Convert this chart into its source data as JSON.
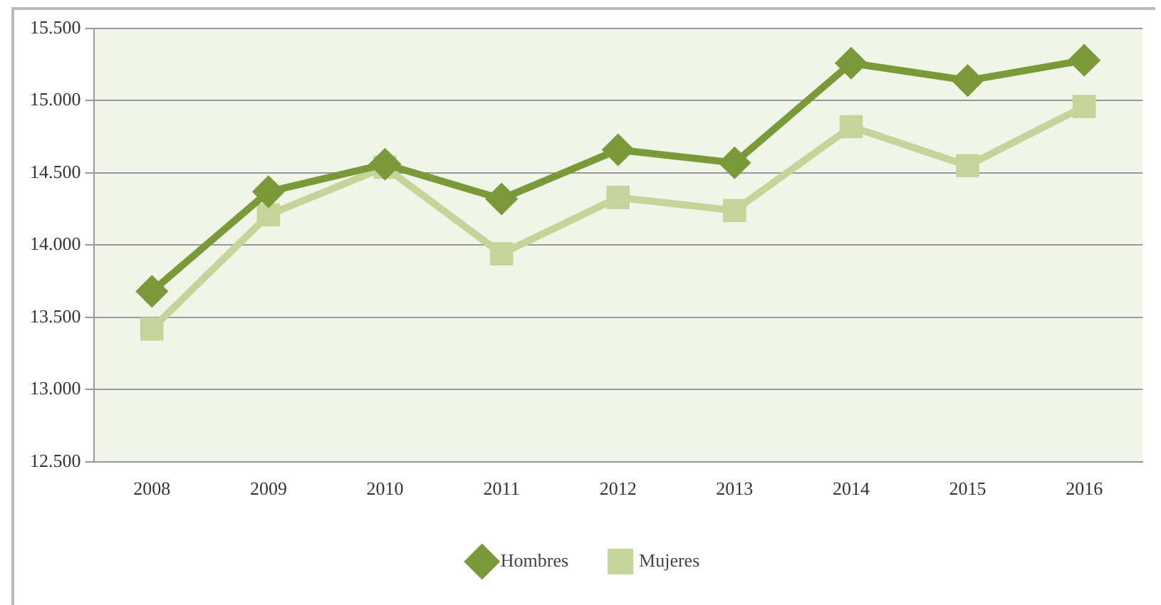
{
  "chart_data": {
    "type": "line",
    "categories": [
      "2008",
      "2009",
      "2010",
      "2011",
      "2012",
      "2013",
      "2014",
      "2015",
      "2016"
    ],
    "series": [
      {
        "name": "Hombres",
        "color": "#7a9a3a",
        "marker": "diamond",
        "values": [
          13680,
          14370,
          14560,
          14320,
          14660,
          14570,
          15260,
          15140,
          15280
        ]
      },
      {
        "name": "Mujeres",
        "color": "#c5d59a",
        "marker": "square",
        "values": [
          13420,
          14210,
          14540,
          13940,
          14330,
          14240,
          14820,
          14550,
          14960
        ]
      }
    ],
    "ylim": [
      12500,
      15500
    ],
    "yticks": [
      {
        "value": 12500,
        "label": "12.500"
      },
      {
        "value": 13000,
        "label": "13.000"
      },
      {
        "value": 13500,
        "label": "13.500"
      },
      {
        "value": 14000,
        "label": "14.000"
      },
      {
        "value": 14500,
        "label": "14.500"
      },
      {
        "value": 15000,
        "label": "15.000"
      },
      {
        "value": 15500,
        "label": "15.500"
      }
    ],
    "grid": "y",
    "legend": "bottom",
    "line_style": "solid"
  }
}
